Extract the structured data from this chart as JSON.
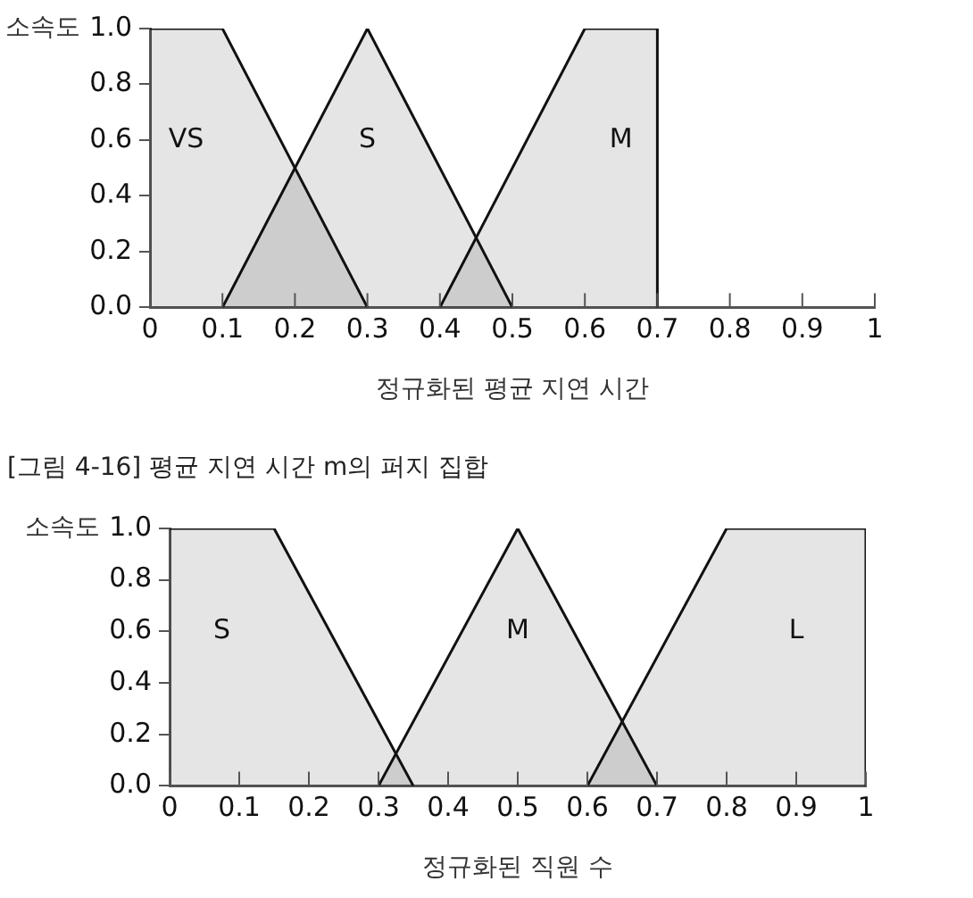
{
  "chart_data": [
    {
      "type": "area",
      "xlabel": "정규화된 평균 지연 시간",
      "ylabel": "소속도",
      "annotations": [
        "[그림 4-16] 평균 지연 시간 m의 퍼지 집합"
      ],
      "series": [
        {
          "name": "VS",
          "color": "#111111",
          "x": [
            0,
            0.1,
            0.3
          ],
          "values": [
            1,
            1,
            0
          ]
        },
        {
          "name": "S",
          "color": "#111111",
          "x": [
            0.1,
            0.3,
            0.5
          ],
          "values": [
            0,
            1,
            0
          ]
        },
        {
          "name": "M",
          "color": "#111111",
          "x": [
            0.4,
            0.6,
            0.7,
            0.7
          ],
          "values": [
            0,
            1,
            1,
            0
          ]
        }
      ],
      "xlim": [
        0,
        1
      ],
      "xticks": [
        0,
        0.1,
        0.2,
        0.3,
        0.4,
        0.5,
        0.6,
        0.7,
        0.8,
        0.9,
        1
      ],
      "ylim": [
        0,
        1
      ],
      "yticks": [
        {
          "value": 0,
          "label": "0.0"
        },
        {
          "value": 0.2,
          "label": "0.2"
        },
        {
          "value": 0.4,
          "label": "0.4"
        },
        {
          "value": 0.6,
          "label": "0.6"
        },
        {
          "value": 0.8,
          "label": "0.8"
        },
        {
          "value": 1,
          "label": "1.0"
        }
      ],
      "grid": false,
      "legend": false,
      "marker": "none",
      "line_style": "solid"
    },
    {
      "type": "area",
      "xlabel": "정규화된 직원 수",
      "ylabel": "소속도",
      "series": [
        {
          "name": "S",
          "color": "#111111",
          "x": [
            0,
            0.15,
            0.35
          ],
          "values": [
            1,
            1,
            0
          ]
        },
        {
          "name": "M",
          "color": "#111111",
          "x": [
            0.3,
            0.5,
            0.7
          ],
          "values": [
            0,
            1,
            0
          ]
        },
        {
          "name": "L",
          "color": "#111111",
          "x": [
            0.6,
            0.8,
            1,
            1
          ],
          "values": [
            0,
            1,
            1,
            0
          ]
        }
      ],
      "xlim": [
        0,
        1
      ],
      "xticks": [
        0,
        0.1,
        0.2,
        0.3,
        0.4,
        0.5,
        0.6,
        0.7,
        0.8,
        0.9,
        1
      ],
      "ylim": [
        0,
        1
      ],
      "yticks": [
        {
          "value": 0,
          "label": "0.0"
        },
        {
          "value": 0.2,
          "label": "0.2"
        },
        {
          "value": 0.4,
          "label": "0.4"
        },
        {
          "value": 0.6,
          "label": "0.6"
        },
        {
          "value": 0.8,
          "label": "0.8"
        },
        {
          "value": 1,
          "label": "1.0"
        }
      ],
      "grid": false,
      "legend": false,
      "marker": "none",
      "line_style": "solid"
    }
  ]
}
